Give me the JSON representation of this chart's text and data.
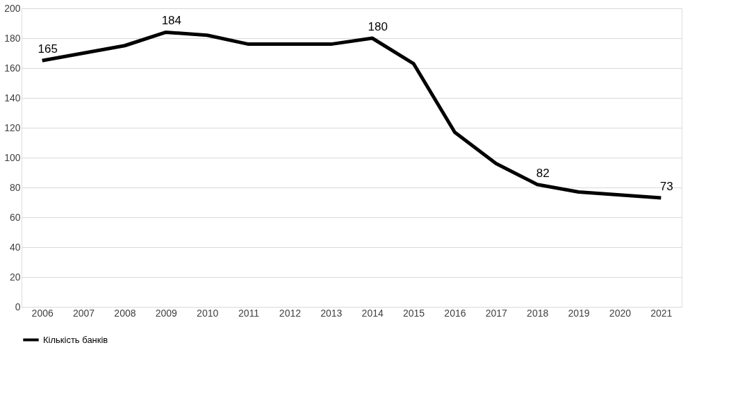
{
  "chart_data": {
    "type": "line",
    "categories": [
      "2006",
      "2007",
      "2008",
      "2009",
      "2010",
      "2011",
      "2012",
      "2013",
      "2014",
      "2015",
      "2016",
      "2017",
      "2018",
      "2019",
      "2020",
      "2021"
    ],
    "series": [
      {
        "name": "Кількість банків",
        "color": "#000000",
        "values": [
          165,
          170,
          175,
          184,
          182,
          176,
          176,
          176,
          180,
          163,
          117,
          96,
          82,
          77,
          75,
          73
        ],
        "value_labels": [
          "165",
          null,
          null,
          "184",
          null,
          null,
          null,
          null,
          "180",
          null,
          null,
          null,
          "82",
          null,
          null,
          "73"
        ]
      }
    ],
    "ylim": [
      0,
      200
    ],
    "yticks": [
      0,
      20,
      40,
      60,
      80,
      100,
      120,
      140,
      160,
      180,
      200
    ],
    "grid": "y",
    "legend": "bottom",
    "marker": "none",
    "line_style": "solid"
  }
}
